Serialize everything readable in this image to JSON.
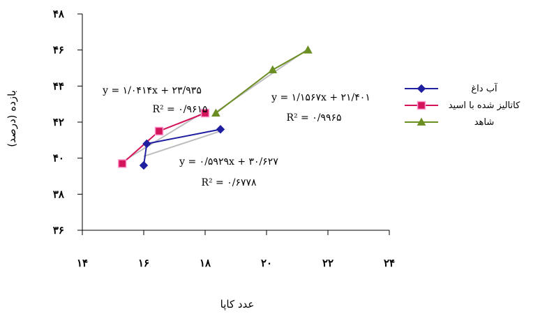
{
  "chart_data": {
    "type": "scatter",
    "title": "",
    "xlabel": "عدد کاپا",
    "ylabel": "بازده (درصد)",
    "xlim": [
      14,
      24
    ],
    "ylim": [
      36,
      48
    ],
    "x_ticks": [
      14,
      16,
      18,
      20,
      22,
      24
    ],
    "y_ticks": [
      36,
      38,
      40,
      42,
      44,
      46,
      48
    ],
    "x_tick_labels": [
      "۱۴",
      "۱۶",
      "۱۸",
      "۲۰",
      "۲۲",
      "۲۴"
    ],
    "y_tick_labels": [
      "۳۶",
      "۳۸",
      "۴۰",
      "۴۲",
      "۴۴",
      "۴۶",
      "۴۸"
    ],
    "legend_position": "right",
    "series": [
      {
        "name": "آب داغ",
        "color": "#1f1fa0",
        "marker": "diamond",
        "points": [
          [
            16.0,
            39.6
          ],
          [
            16.1,
            40.8
          ],
          [
            18.5,
            41.6
          ]
        ],
        "trend": [
          [
            16.0,
            40.1
          ],
          [
            18.5,
            41.5
          ]
        ]
      },
      {
        "name": "کاتالیز شده با اسید",
        "color": "#d4145a",
        "marker": "square",
        "points": [
          [
            15.3,
            39.7
          ],
          [
            16.5,
            41.5
          ],
          [
            18.0,
            42.5
          ]
        ],
        "trend": [
          [
            15.3,
            39.8
          ],
          [
            18.0,
            42.6
          ]
        ]
      },
      {
        "name": "شاهد",
        "color": "#6b8e23",
        "marker": "triangle",
        "points": [
          [
            18.35,
            42.5
          ],
          [
            20.2,
            44.9
          ],
          [
            21.35,
            46.0
          ]
        ],
        "trend": [
          [
            18.3,
            42.5
          ],
          [
            21.3,
            46.0
          ]
        ]
      }
    ],
    "annotations": [
      {
        "line1": "y = ۱/۰۴۱۴x + ۲۳/۹۳۵",
        "line2": "R² = ۰/۹۶۱۵"
      },
      {
        "line1": "y = ۱/۱۵۶۷x + ۲۱/۴۰۱",
        "line2": "R² = ۰/۹۹۶۵"
      },
      {
        "line1": "y = ۰/۵۹۲۹x + ۳۰/۶۲۷",
        "line2": "R² = ۰/۶۷۷۸"
      }
    ],
    "trend_color": "#bdbdbd"
  }
}
